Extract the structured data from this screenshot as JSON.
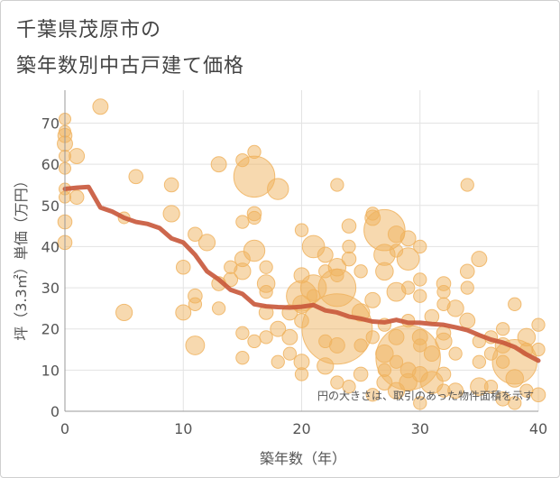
{
  "header": {
    "title_line1": "千葉県茂原市の",
    "title_line2": "築年数別中古戸建て価格"
  },
  "chart_data": {
    "type": "scatter",
    "title": "千葉県茂原市の築年数別中古戸建て価格",
    "xlabel": "築年数（年）",
    "ylabel": "坪（3.3㎡）単価（万円）",
    "xlim": [
      0,
      40
    ],
    "ylim": [
      0,
      78
    ],
    "x_ticks": [
      0,
      10,
      20,
      30,
      40
    ],
    "y_ticks": [
      0,
      10,
      20,
      30,
      40,
      50,
      60,
      70
    ],
    "grid": true,
    "note": "円の大きさは、取引のあった物件面積を示す",
    "colors": {
      "bubble": "#f0b35f",
      "line": "#c8563a",
      "grid": "#e3e3e3",
      "axis": "#999999"
    },
    "bubbles": [
      {
        "x": 0,
        "y": 71,
        "s": 1
      },
      {
        "x": 0,
        "y": 68,
        "s": 1
      },
      {
        "x": 0,
        "y": 67,
        "s": 1.2
      },
      {
        "x": 0,
        "y": 65,
        "s": 1.3
      },
      {
        "x": 0,
        "y": 62,
        "s": 1
      },
      {
        "x": 0,
        "y": 59,
        "s": 1
      },
      {
        "x": 0,
        "y": 54,
        "s": 1
      },
      {
        "x": 0,
        "y": 52,
        "s": 1
      },
      {
        "x": 0,
        "y": 46,
        "s": 1.2
      },
      {
        "x": 0,
        "y": 41,
        "s": 1.2
      },
      {
        "x": 1,
        "y": 62,
        "s": 1.3
      },
      {
        "x": 1,
        "y": 52,
        "s": 1.2
      },
      {
        "x": 3,
        "y": 74,
        "s": 1.3
      },
      {
        "x": 5,
        "y": 47,
        "s": 1
      },
      {
        "x": 5,
        "y": 24,
        "s": 1.4
      },
      {
        "x": 6,
        "y": 57,
        "s": 1.2
      },
      {
        "x": 9,
        "y": 55,
        "s": 1.2
      },
      {
        "x": 9,
        "y": 48,
        "s": 1.4
      },
      {
        "x": 10,
        "y": 35,
        "s": 1.2
      },
      {
        "x": 10,
        "y": 24,
        "s": 1.3
      },
      {
        "x": 11,
        "y": 43,
        "s": 1.2
      },
      {
        "x": 11,
        "y": 28,
        "s": 1.2
      },
      {
        "x": 11,
        "y": 26,
        "s": 1.1
      },
      {
        "x": 11,
        "y": 16,
        "s": 1.6
      },
      {
        "x": 12,
        "y": 41,
        "s": 1.4
      },
      {
        "x": 13,
        "y": 60,
        "s": 1.3
      },
      {
        "x": 13,
        "y": 31,
        "s": 1.2
      },
      {
        "x": 13,
        "y": 25,
        "s": 1.1
      },
      {
        "x": 14,
        "y": 35,
        "s": 1.1
      },
      {
        "x": 14,
        "y": 32,
        "s": 1.2
      },
      {
        "x": 15,
        "y": 61,
        "s": 1.1
      },
      {
        "x": 15,
        "y": 46,
        "s": 1.1
      },
      {
        "x": 15,
        "y": 37,
        "s": 1.3
      },
      {
        "x": 15,
        "y": 34,
        "s": 1.4
      },
      {
        "x": 15,
        "y": 19,
        "s": 1.1
      },
      {
        "x": 15,
        "y": 13,
        "s": 1.1
      },
      {
        "x": 16,
        "y": 63,
        "s": 1.1
      },
      {
        "x": 16,
        "y": 57,
        "s": 3.5
      },
      {
        "x": 16,
        "y": 48,
        "s": 1.2
      },
      {
        "x": 16,
        "y": 47,
        "s": 1.1
      },
      {
        "x": 16,
        "y": 39,
        "s": 1.8
      },
      {
        "x": 16,
        "y": 17,
        "s": 1.1
      },
      {
        "x": 17,
        "y": 35,
        "s": 1.1
      },
      {
        "x": 17,
        "y": 31,
        "s": 1.5
      },
      {
        "x": 17,
        "y": 29,
        "s": 1.1
      },
      {
        "x": 17,
        "y": 24,
        "s": 1.2
      },
      {
        "x": 17,
        "y": 18,
        "s": 1.1
      },
      {
        "x": 18,
        "y": 54,
        "s": 1.8
      },
      {
        "x": 18,
        "y": 20,
        "s": 1.3
      },
      {
        "x": 18,
        "y": 12,
        "s": 1.1
      },
      {
        "x": 19,
        "y": 24,
        "s": 1.3
      },
      {
        "x": 19,
        "y": 18,
        "s": 1.3
      },
      {
        "x": 19,
        "y": 14,
        "s": 1.1
      },
      {
        "x": 20,
        "y": 44,
        "s": 1.1
      },
      {
        "x": 20,
        "y": 33,
        "s": 1.3
      },
      {
        "x": 20,
        "y": 28,
        "s": 2.6
      },
      {
        "x": 20,
        "y": 26,
        "s": 1.5
      },
      {
        "x": 20,
        "y": 22,
        "s": 1.2
      },
      {
        "x": 20,
        "y": 12,
        "s": 1.3
      },
      {
        "x": 20,
        "y": 9,
        "s": 1.1
      },
      {
        "x": 21,
        "y": 40,
        "s": 1.9
      },
      {
        "x": 21,
        "y": 30,
        "s": 2.2
      },
      {
        "x": 21,
        "y": 28,
        "s": 1.1
      },
      {
        "x": 22,
        "y": 38,
        "s": 1.3
      },
      {
        "x": 22,
        "y": 34,
        "s": 1.1
      },
      {
        "x": 22,
        "y": 17,
        "s": 1.1
      },
      {
        "x": 22,
        "y": 11,
        "s": 1.4
      },
      {
        "x": 23,
        "y": 55,
        "s": 1.1
      },
      {
        "x": 23,
        "y": 35,
        "s": 1.5
      },
      {
        "x": 23,
        "y": 33,
        "s": 1.1
      },
      {
        "x": 23,
        "y": 30,
        "s": 3.2
      },
      {
        "x": 23,
        "y": 20,
        "s": 6
      },
      {
        "x": 23,
        "y": 16,
        "s": 1.3
      },
      {
        "x": 23,
        "y": 7,
        "s": 1.1
      },
      {
        "x": 24,
        "y": 45,
        "s": 1.2
      },
      {
        "x": 24,
        "y": 40,
        "s": 1.1
      },
      {
        "x": 24,
        "y": 37,
        "s": 1.2
      },
      {
        "x": 24,
        "y": 6,
        "s": 1.1
      },
      {
        "x": 25,
        "y": 34,
        "s": 1.1
      },
      {
        "x": 25,
        "y": 24,
        "s": 1.5
      },
      {
        "x": 25,
        "y": 16,
        "s": 1.1
      },
      {
        "x": 25,
        "y": 9,
        "s": 1.2
      },
      {
        "x": 26,
        "y": 48,
        "s": 1.1
      },
      {
        "x": 26,
        "y": 47,
        "s": 1.3
      },
      {
        "x": 26,
        "y": 27,
        "s": 1.3
      },
      {
        "x": 26,
        "y": 18,
        "s": 1.1
      },
      {
        "x": 26,
        "y": 4,
        "s": 1.1
      },
      {
        "x": 27,
        "y": 44,
        "s": 3.5
      },
      {
        "x": 27,
        "y": 38,
        "s": 1.8
      },
      {
        "x": 27,
        "y": 34,
        "s": 1.5
      },
      {
        "x": 27,
        "y": 21,
        "s": 1.1
      },
      {
        "x": 27,
        "y": 14,
        "s": 1.5
      },
      {
        "x": 27,
        "y": 10,
        "s": 1.1
      },
      {
        "x": 27,
        "y": 7,
        "s": 1.3
      },
      {
        "x": 28,
        "y": 43,
        "s": 1.4
      },
      {
        "x": 28,
        "y": 39,
        "s": 1.1
      },
      {
        "x": 28,
        "y": 29,
        "s": 1.6
      },
      {
        "x": 28,
        "y": 18,
        "s": 1.3
      },
      {
        "x": 28,
        "y": 12,
        "s": 1.1
      },
      {
        "x": 28,
        "y": 5,
        "s": 1.4
      },
      {
        "x": 29,
        "y": 42,
        "s": 1.3
      },
      {
        "x": 29,
        "y": 37,
        "s": 1.9
      },
      {
        "x": 29,
        "y": 30,
        "s": 1.1
      },
      {
        "x": 29,
        "y": 22,
        "s": 1.1
      },
      {
        "x": 29,
        "y": 13,
        "s": 5.5
      },
      {
        "x": 29,
        "y": 10,
        "s": 1.3
      },
      {
        "x": 29,
        "y": 7,
        "s": 1.5
      },
      {
        "x": 30,
        "y": 40,
        "s": 1.1
      },
      {
        "x": 30,
        "y": 32,
        "s": 1.1
      },
      {
        "x": 30,
        "y": 28,
        "s": 1.1
      },
      {
        "x": 30,
        "y": 18,
        "s": 1.3
      },
      {
        "x": 30,
        "y": 16,
        "s": 1.1
      },
      {
        "x": 30,
        "y": 9,
        "s": 1.3
      },
      {
        "x": 30,
        "y": 2,
        "s": 1.1
      },
      {
        "x": 31,
        "y": 23,
        "s": 1.2
      },
      {
        "x": 31,
        "y": 14,
        "s": 1.3
      },
      {
        "x": 31,
        "y": 7,
        "s": 1.9
      },
      {
        "x": 32,
        "y": 31,
        "s": 1.2
      },
      {
        "x": 32,
        "y": 29,
        "s": 1.1
      },
      {
        "x": 32,
        "y": 26,
        "s": 1.1
      },
      {
        "x": 32,
        "y": 19,
        "s": 1.2
      },
      {
        "x": 32,
        "y": 17,
        "s": 1.4
      },
      {
        "x": 32,
        "y": 9,
        "s": 1.2
      },
      {
        "x": 32,
        "y": 5,
        "s": 1.1
      },
      {
        "x": 33,
        "y": 25,
        "s": 1.4
      },
      {
        "x": 33,
        "y": 14,
        "s": 1.1
      },
      {
        "x": 33,
        "y": 5,
        "s": 1.3
      },
      {
        "x": 34,
        "y": 55,
        "s": 1.1
      },
      {
        "x": 34,
        "y": 34,
        "s": 1.2
      },
      {
        "x": 34,
        "y": 30,
        "s": 1.1
      },
      {
        "x": 34,
        "y": 22,
        "s": 1.3
      },
      {
        "x": 35,
        "y": 37,
        "s": 1.3
      },
      {
        "x": 35,
        "y": 17,
        "s": 1.1
      },
      {
        "x": 35,
        "y": 12,
        "s": 1.1
      },
      {
        "x": 35,
        "y": 6,
        "s": 1.5
      },
      {
        "x": 36,
        "y": 18,
        "s": 1.1
      },
      {
        "x": 36,
        "y": 14,
        "s": 1.1
      },
      {
        "x": 36,
        "y": 6,
        "s": 1.1
      },
      {
        "x": 37,
        "y": 20,
        "s": 1.1
      },
      {
        "x": 37,
        "y": 16,
        "s": 1.3
      },
      {
        "x": 37,
        "y": 12,
        "s": 1.1
      },
      {
        "x": 37,
        "y": 3,
        "s": 1.2
      },
      {
        "x": 38,
        "y": 26,
        "s": 1.1
      },
      {
        "x": 38,
        "y": 12,
        "s": 3.8
      },
      {
        "x": 38,
        "y": 8,
        "s": 1.5
      },
      {
        "x": 38,
        "y": 2,
        "s": 1.1
      },
      {
        "x": 39,
        "y": 18,
        "s": 1.5
      },
      {
        "x": 39,
        "y": 15,
        "s": 1.1
      },
      {
        "x": 39,
        "y": 5,
        "s": 1.1
      },
      {
        "x": 40,
        "y": 21,
        "s": 1.1
      },
      {
        "x": 40,
        "y": 15,
        "s": 1.1
      },
      {
        "x": 40,
        "y": 4,
        "s": 1.2
      }
    ],
    "line": {
      "x": [
        0,
        1,
        2,
        3,
        4,
        5,
        6,
        7,
        8,
        9,
        10,
        11,
        12,
        13,
        14,
        15,
        16,
        17,
        18,
        19,
        20,
        21,
        22,
        23,
        24,
        25,
        26,
        27,
        28,
        29,
        30,
        31,
        32,
        33,
        34,
        35,
        36,
        37,
        38,
        39,
        40
      ],
      "y": [
        54,
        54.3,
        54.5,
        49.5,
        48.5,
        47,
        46,
        45.5,
        44.5,
        42,
        41,
        38,
        34,
        32,
        29.5,
        28.5,
        26,
        25.5,
        25.3,
        25.2,
        25.4,
        25.8,
        24.5,
        24,
        23,
        22.5,
        21.8,
        21.6,
        22.2,
        21.5,
        21.5,
        21.2,
        21,
        20.4,
        19.7,
        18.5,
        17.4,
        16.7,
        15.6,
        13.8,
        12.3
      ]
    }
  }
}
